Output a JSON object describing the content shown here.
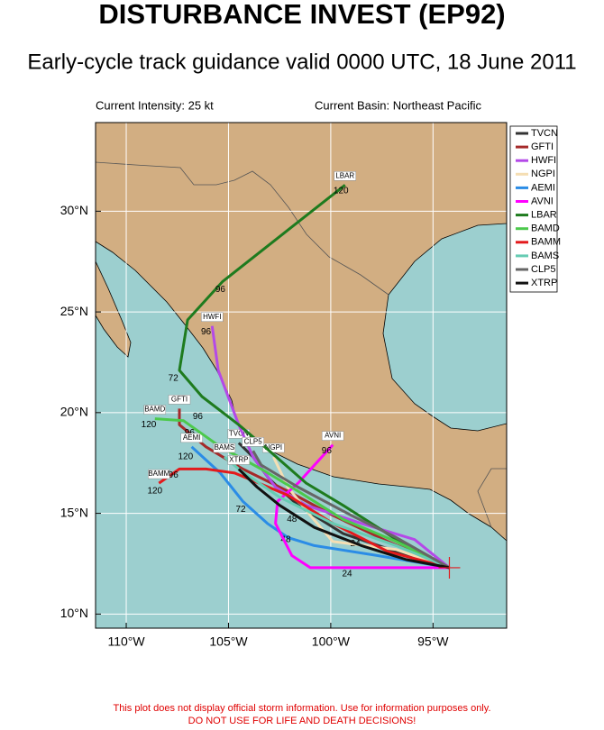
{
  "header": {
    "title": "DISTURBANCE INVEST (EP92)",
    "subtitle": "Early-cycle track guidance valid 0000 UTC, 18 June 2011",
    "intensity": "Current Intensity: 25 kt",
    "basin": "Current Basin: Northeast Pacific"
  },
  "map": {
    "lonlim": [
      -111.5,
      -91.4
    ],
    "latlim": [
      9.3,
      34.4
    ],
    "xticks": [
      {
        "value": -110,
        "label": "110°W"
      },
      {
        "value": -105,
        "label": "105°W"
      },
      {
        "value": -100,
        "label": "100°W"
      },
      {
        "value": -95,
        "label": "95°W"
      }
    ],
    "yticks": [
      {
        "value": 10,
        "label": "10°N"
      },
      {
        "value": 15,
        "label": "15°N"
      },
      {
        "value": 20,
        "label": "20°N"
      },
      {
        "value": 25,
        "label": "25°N"
      },
      {
        "value": 30,
        "label": "30°N"
      }
    ],
    "grid": true,
    "initial_position": [
      -94.2,
      12.3
    ],
    "initial_color": "#e31a1c"
  },
  "tracks": [
    {
      "name": "TVCN",
      "color": "#333333",
      "points": [
        [
          -94.2,
          12.3
        ],
        [
          -96.8,
          13.1
        ],
        [
          -99.4,
          14.0
        ],
        [
          -101.6,
          15.4
        ],
        [
          -103.0,
          16.7
        ],
        [
          -103.8,
          17.8
        ],
        [
          -104.5,
          18.5
        ]
      ],
      "hour_labels": [
        {
          "text": "24",
          "lon": -98.8,
          "lat": 13.5
        },
        {
          "text": "48",
          "lon": -101.9,
          "lat": 14.7
        }
      ]
    },
    {
      "name": "GFTI",
      "color": "#a52a2a",
      "points": [
        [
          -94.2,
          12.3
        ],
        [
          -97.2,
          13.6
        ],
        [
          -99.9,
          14.9
        ],
        [
          -102.1,
          16.1
        ],
        [
          -104.3,
          17.2
        ],
        [
          -106.1,
          18.3
        ],
        [
          -107.4,
          19.4
        ],
        [
          -107.4,
          20.2
        ]
      ],
      "hour_labels": [
        {
          "text": "96",
          "lon": -106.9,
          "lat": 19.0
        }
      ]
    },
    {
      "name": "HWFI",
      "color": "#b449e8",
      "points": [
        [
          -94.2,
          12.3
        ],
        [
          -95.9,
          13.7
        ],
        [
          -98.5,
          14.5
        ],
        [
          -101.2,
          15.4
        ],
        [
          -102.7,
          16.3
        ],
        [
          -103.8,
          17.8
        ],
        [
          -104.5,
          19.4
        ],
        [
          -105.5,
          22.1
        ],
        [
          -105.8,
          24.3
        ]
      ],
      "hour_labels": [
        {
          "text": "96",
          "lon": -106.1,
          "lat": 24.0
        }
      ]
    },
    {
      "name": "NGPI",
      "color": "#f5deb3",
      "points": [
        [
          -94.2,
          12.3
        ],
        [
          -96.8,
          13.2
        ],
        [
          -99.9,
          13.6
        ],
        [
          -101.0,
          14.9
        ],
        [
          -102.1,
          16.3
        ],
        [
          -102.8,
          17.8
        ]
      ],
      "hour_labels": []
    },
    {
      "name": "AEMI",
      "color": "#2b8ce6",
      "points": [
        [
          -94.2,
          12.3
        ],
        [
          -97.7,
          12.9
        ],
        [
          -100.8,
          13.4
        ],
        [
          -102.1,
          13.8
        ],
        [
          -103.1,
          14.5
        ],
        [
          -104.3,
          15.6
        ],
        [
          -105.4,
          17.0
        ],
        [
          -106.8,
          18.3
        ]
      ],
      "hour_labels": [
        {
          "text": "48",
          "lon": -102.2,
          "lat": 13.7
        },
        {
          "text": "72",
          "lon": -104.4,
          "lat": 15.2
        },
        {
          "text": "120",
          "lon": -107.1,
          "lat": 17.8
        }
      ]
    },
    {
      "name": "AVNI",
      "color": "#ff00ff",
      "points": [
        [
          -94.2,
          12.3
        ],
        [
          -96.8,
          12.3
        ],
        [
          -99.4,
          12.3
        ],
        [
          -101.0,
          12.3
        ],
        [
          -101.9,
          12.9
        ],
        [
          -102.7,
          14.5
        ],
        [
          -102.6,
          15.6
        ],
        [
          -101.6,
          16.5
        ],
        [
          -99.9,
          18.4
        ]
      ],
      "hour_labels": [
        {
          "text": "24",
          "lon": -99.2,
          "lat": 12.0
        },
        {
          "text": "96",
          "lon": -100.2,
          "lat": 18.1
        }
      ]
    },
    {
      "name": "LBAR",
      "color": "#1e7b1e",
      "points": [
        [
          -94.2,
          12.3
        ],
        [
          -95.9,
          13.1
        ],
        [
          -97.7,
          14.3
        ],
        [
          -99.4,
          15.4
        ],
        [
          -101.2,
          16.5
        ],
        [
          -103.0,
          18.1
        ],
        [
          -104.5,
          19.4
        ],
        [
          -106.3,
          20.8
        ],
        [
          -107.4,
          22.1
        ],
        [
          -107.0,
          24.6
        ],
        [
          -105.3,
          26.5
        ],
        [
          -102.3,
          28.9
        ],
        [
          -99.3,
          31.3
        ]
      ],
      "hour_labels": [
        {
          "text": "72",
          "lon": -107.7,
          "lat": 21.7
        },
        {
          "text": "96",
          "lon": -105.4,
          "lat": 26.1
        },
        {
          "text": "120",
          "lon": -99.5,
          "lat": 31.0
        }
      ]
    },
    {
      "name": "BAMD",
      "color": "#4cc94c",
      "points": [
        [
          -94.2,
          12.3
        ],
        [
          -96.8,
          13.6
        ],
        [
          -99.4,
          14.7
        ],
        [
          -101.6,
          16.1
        ],
        [
          -103.4,
          17.2
        ],
        [
          -105.4,
          18.3
        ],
        [
          -107.2,
          19.6
        ],
        [
          -108.6,
          19.7
        ]
      ],
      "hour_labels": [
        {
          "text": "120",
          "lon": -108.9,
          "lat": 19.4
        },
        {
          "text": "96",
          "lon": -106.5,
          "lat": 19.8
        }
      ]
    },
    {
      "name": "BAMM",
      "color": "#e31a1c",
      "points": [
        [
          -94.2,
          12.3
        ],
        [
          -97.2,
          13.1
        ],
        [
          -99.9,
          14.5
        ],
        [
          -102.1,
          15.9
        ],
        [
          -104.7,
          17.0
        ],
        [
          -106.1,
          17.2
        ],
        [
          -107.4,
          17.2
        ],
        [
          -108.4,
          16.5
        ]
      ],
      "hour_labels": [
        {
          "text": "120",
          "lon": -108.6,
          "lat": 16.1
        },
        {
          "text": "96",
          "lon": -107.7,
          "lat": 16.9
        }
      ]
    },
    {
      "name": "BAMS",
      "color": "#66ccb3",
      "points": [
        [
          -94.2,
          12.3
        ],
        [
          -96.8,
          13.4
        ],
        [
          -99.9,
          14.5
        ],
        [
          -102.5,
          15.8
        ],
        [
          -104.5,
          17.2
        ],
        [
          -105.2,
          17.8
        ]
      ],
      "hour_labels": []
    },
    {
      "name": "CLP5",
      "color": "#666666",
      "points": [
        [
          -94.2,
          12.3
        ],
        [
          -96.8,
          13.8
        ],
        [
          -99.0,
          14.9
        ],
        [
          -101.6,
          16.3
        ],
        [
          -103.4,
          17.4
        ],
        [
          -103.8,
          18.1
        ]
      ],
      "hour_labels": []
    },
    {
      "name": "XTRP",
      "color": "#111111",
      "points": [
        [
          -94.2,
          12.3
        ],
        [
          -96.3,
          12.7
        ],
        [
          -98.5,
          13.4
        ],
        [
          -100.8,
          14.3
        ],
        [
          -102.5,
          15.4
        ],
        [
          -103.6,
          16.3
        ],
        [
          -104.5,
          17.2
        ]
      ],
      "hour_labels": []
    }
  ],
  "footer": {
    "line1": "This plot does not display official storm information. Use for information purposes only.",
    "line2": "DO NOT USE FOR LIFE AND DEATH DECISIONS!"
  }
}
